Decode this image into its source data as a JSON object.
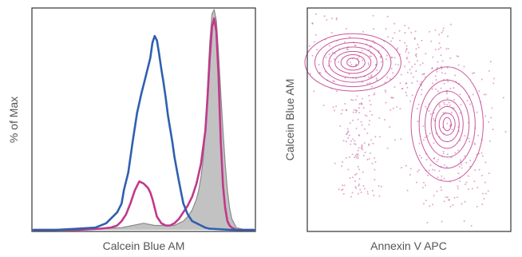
{
  "chart_data": [
    {
      "type": "line",
      "subtype": "histogram-overlay",
      "title": "",
      "xlabel": "Calcein Blue AM",
      "ylabel": "% of Max",
      "xlim": [
        0,
        100
      ],
      "ylim": [
        0,
        100
      ],
      "grid": false,
      "legend": "none",
      "series": [
        {
          "color": "#2f5fb0",
          "fill": "none",
          "x": [
            0,
            10,
            20,
            28,
            33,
            36,
            38,
            40,
            41,
            43,
            45,
            47,
            49,
            51,
            53,
            54,
            55,
            56,
            57,
            58,
            59,
            60,
            61,
            62,
            63,
            64,
            66,
            68,
            70,
            72,
            74,
            76,
            78,
            80,
            90,
            100
          ],
          "y": [
            0,
            0,
            0.5,
            1,
            3,
            6,
            8,
            12,
            18,
            26,
            40,
            53,
            62,
            70,
            78,
            85,
            88,
            86,
            80,
            73,
            67,
            60,
            52,
            46,
            40,
            33,
            22,
            12,
            7,
            4,
            3,
            2,
            1,
            0.5,
            0,
            0
          ]
        },
        {
          "color": "#c0398a",
          "fill": "none",
          "x": [
            0,
            20,
            30,
            35,
            38,
            40,
            42,
            44,
            46,
            48,
            50,
            51,
            52,
            53,
            54,
            55,
            56,
            58,
            60,
            62,
            64,
            66,
            68,
            70,
            72,
            74,
            76,
            78,
            79,
            80,
            81,
            82,
            83,
            84,
            85,
            86,
            87,
            88,
            89,
            90,
            91,
            92,
            93,
            94,
            95,
            100
          ],
          "y": [
            0,
            0,
            0.5,
            1,
            2,
            4,
            7,
            12,
            18,
            22,
            21,
            20,
            19,
            17,
            14,
            10,
            6,
            3,
            2,
            2,
            3,
            5,
            8,
            11,
            15,
            21,
            30,
            45,
            60,
            78,
            92,
            96,
            90,
            70,
            40,
            20,
            10,
            4,
            2,
            1,
            0.5,
            0,
            0,
            0,
            0,
            0
          ]
        },
        {
          "color": "#8a8a8a",
          "fill": "#bbbbbb",
          "x": [
            0,
            20,
            30,
            40,
            45,
            50,
            55,
            60,
            62,
            64,
            66,
            68,
            70,
            72,
            74,
            75,
            76,
            77,
            78,
            79,
            80,
            81,
            82,
            83,
            84,
            85,
            86,
            87,
            88,
            89,
            90,
            91,
            92,
            94,
            96,
            100
          ],
          "y": [
            0,
            0,
            0.5,
            1,
            2,
            3,
            2,
            2,
            2,
            2,
            3,
            4,
            6,
            9,
            14,
            18,
            24,
            32,
            45,
            65,
            85,
            98,
            100,
            95,
            80,
            62,
            45,
            30,
            18,
            10,
            5,
            3,
            1,
            0.5,
            0,
            0
          ]
        }
      ]
    },
    {
      "type": "scatter",
      "subtype": "contour",
      "title": "",
      "xlabel": "Annexin V APC",
      "ylabel": "Calcein Blue AM",
      "xlim": [
        0,
        100
      ],
      "ylim": [
        0,
        100
      ],
      "grid": false,
      "legend": "none",
      "color": "#c0398a",
      "populations": [
        {
          "cx": 22,
          "cy": 76,
          "contour_rx": [
            24,
            19,
            15,
            12,
            9,
            6,
            3
          ],
          "contour_ry": [
            13,
            11,
            9,
            7,
            5,
            3.5,
            2
          ]
        },
        {
          "cx": 69,
          "cy": 48,
          "contour_rx": [
            18,
            14,
            11,
            8,
            6,
            4,
            2
          ],
          "contour_ry": [
            26,
            20,
            15,
            11,
            8,
            5,
            3
          ]
        }
      ]
    }
  ]
}
